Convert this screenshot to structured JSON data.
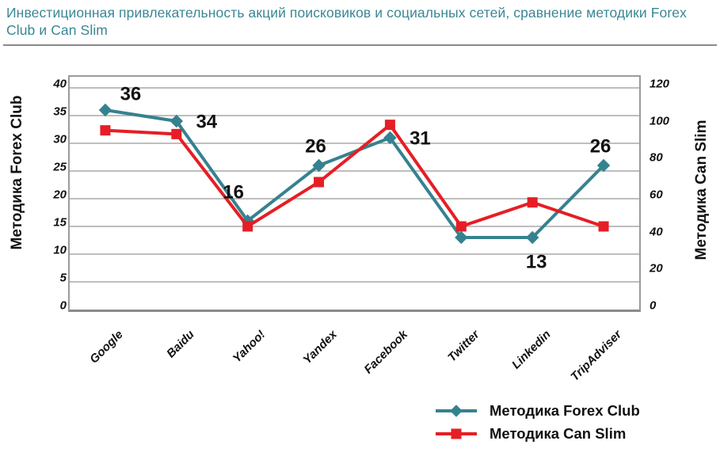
{
  "page": {
    "title": "Инвестиционная привлекательность акций поисковиков и социальных сетей, сравнение методики Forex Club и Can Slim"
  },
  "colors": {
    "title": "#3A8794",
    "divider": "#8A8A8A",
    "grid": "#A8A8A8",
    "plot_border": "#9B9B9B",
    "forex_club": "#35828F",
    "can_slim": "#E61E25",
    "text": "#111111"
  },
  "chart_data": {
    "type": "line",
    "categories": [
      "Google",
      "Baidu",
      "Yahoo!",
      "Yandex",
      "Facebook",
      "Twitter",
      "Linkedin",
      "TripAdviser"
    ],
    "series": [
      {
        "name": "Методика Forex Club",
        "axis": "left",
        "color": "#35828F",
        "marker": "diamond",
        "values": [
          36,
          34,
          16,
          26,
          31,
          13,
          13,
          26
        ],
        "labels": [
          36,
          34,
          16,
          26,
          31,
          null,
          13,
          26
        ],
        "label_hints": [
          "above-right",
          "right",
          "above-left",
          "above",
          "right",
          null,
          "below",
          "above"
        ]
      },
      {
        "name": "Методика Can Slim",
        "axis": "right",
        "color": "#E61E25",
        "marker": "square",
        "values": [
          97,
          95,
          45,
          69,
          100,
          45,
          58,
          45
        ],
        "labels": [
          null,
          null,
          null,
          null,
          null,
          null,
          null,
          null
        ],
        "label_hints": [
          null,
          null,
          null,
          null,
          null,
          null,
          null,
          null
        ]
      }
    ],
    "left_axis": {
      "title": "Методика Forex Club",
      "min": 0,
      "max": 42,
      "ticks": [
        0,
        5,
        10,
        15,
        20,
        25,
        30,
        35,
        40
      ]
    },
    "right_axis": {
      "title": "Методика Can Slim",
      "min": 0,
      "max": 126,
      "ticks": [
        0,
        20,
        40,
        60,
        80,
        100,
        120
      ]
    },
    "grid": true,
    "legend_position": "bottom-right",
    "legend": [
      {
        "label": "Методика Forex Club",
        "marker": "diamond",
        "color": "#35828F"
      },
      {
        "label": "Методика Can Slim",
        "marker": "square",
        "color": "#E61E25"
      }
    ]
  }
}
